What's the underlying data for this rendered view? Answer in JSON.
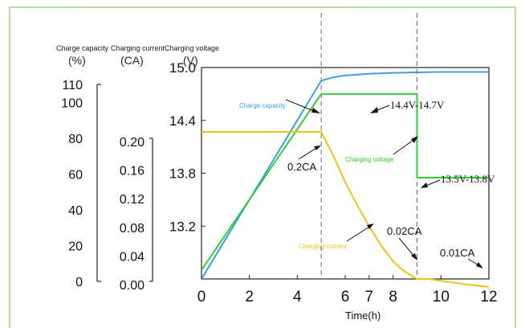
{
  "chart_data": {
    "type": "line",
    "headers": {
      "capacity": "Charge  capacity",
      "current": "Charging current",
      "voltage": "Charging voltage"
    },
    "units": {
      "capacity": "(%)",
      "current": "(CA)",
      "voltage": "(V)"
    },
    "xlabel": "Time(h)",
    "x_ticks": [
      "0",
      "2",
      "4",
      "6",
      "7",
      "8",
      "10",
      "12"
    ],
    "x_tick_values": [
      0,
      2,
      4,
      6,
      7,
      8,
      10,
      12
    ],
    "xlim": [
      0,
      12
    ],
    "capacity_axis": {
      "ticks": [
        "110",
        "100",
        "80",
        "60",
        "40",
        "20",
        "0"
      ],
      "tick_values": [
        110,
        100,
        80,
        60,
        40,
        20,
        0
      ],
      "ylim": [
        0,
        110
      ]
    },
    "current_axis": {
      "ticks": [
        "0.20",
        "0.16",
        "0.12",
        "0.08",
        "0.04",
        "0.00"
      ],
      "tick_values": [
        0.2,
        0.16,
        0.12,
        0.08,
        0.04,
        0.0
      ],
      "ylim": [
        0,
        0.2
      ]
    },
    "voltage_axis": {
      "ticks": [
        "15.0",
        "14.4",
        "13.8",
        "13.2"
      ],
      "tick_values": [
        15.0,
        14.4,
        13.8,
        13.2
      ],
      "ylim": [
        12.6,
        15.0
      ]
    },
    "phase_boundaries": [
      5,
      9
    ],
    "series": [
      {
        "name": "Charge capacity",
        "color": "#3aa0e6",
        "axis": "voltage",
        "x": [
          0,
          1,
          2,
          3,
          4,
          5,
          5.5,
          6,
          7,
          8,
          9,
          10,
          11,
          12
        ],
        "y": [
          12.6,
          13.05,
          13.5,
          13.95,
          14.4,
          14.85,
          14.89,
          14.91,
          14.93,
          14.94,
          14.945,
          14.95,
          14.95,
          14.95
        ]
      },
      {
        "name": "Charging voltage",
        "color": "#33cc33",
        "axis": "voltage",
        "x": [
          0,
          1,
          2,
          3,
          4,
          5,
          9,
          9,
          12
        ],
        "y": [
          12.7,
          13.1,
          13.5,
          13.9,
          14.3,
          14.7,
          14.7,
          13.75,
          13.75
        ]
      },
      {
        "name": "Charging current",
        "color": "#f2c21a",
        "axis": "voltage",
        "x": [
          0,
          5,
          5.5,
          6,
          6.5,
          7,
          7.5,
          8,
          8.5,
          9,
          9.5,
          10,
          11,
          12
        ],
        "y": [
          14.27,
          14.27,
          14.0,
          13.7,
          13.44,
          13.2,
          12.98,
          12.8,
          12.68,
          12.6,
          12.6,
          12.58,
          12.54,
          12.51
        ]
      }
    ],
    "annotations": {
      "capacity": "Charge capacity",
      "voltage_range": "14.4V-14.7V",
      "voltage_label": "Charging voltage",
      "float_voltage": "13.5V-13.8V",
      "current_start": "0.2CA",
      "current_label": "Charging current",
      "current_mid": "0.02CA",
      "current_end": "0.01CA"
    }
  }
}
